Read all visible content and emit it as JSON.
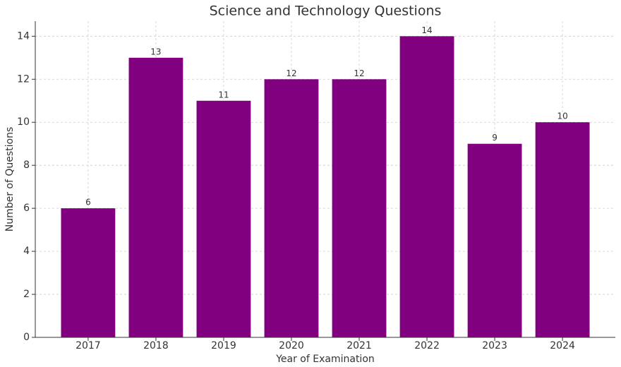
{
  "chart_data": {
    "type": "bar",
    "title": "Science and Technology Questions",
    "x_label": "Year of Examination",
    "y_label": "Number of Questions",
    "categories": [
      "2017",
      "2018",
      "2019",
      "2020",
      "2021",
      "2022",
      "2023",
      "2024"
    ],
    "values": [
      6,
      13,
      11,
      12,
      12,
      14,
      9,
      10
    ],
    "color": "#800080",
    "ylim": [
      0,
      14.7
    ],
    "yticks": [
      0,
      2,
      4,
      6,
      8,
      10,
      12,
      14
    ],
    "grid": true
  }
}
